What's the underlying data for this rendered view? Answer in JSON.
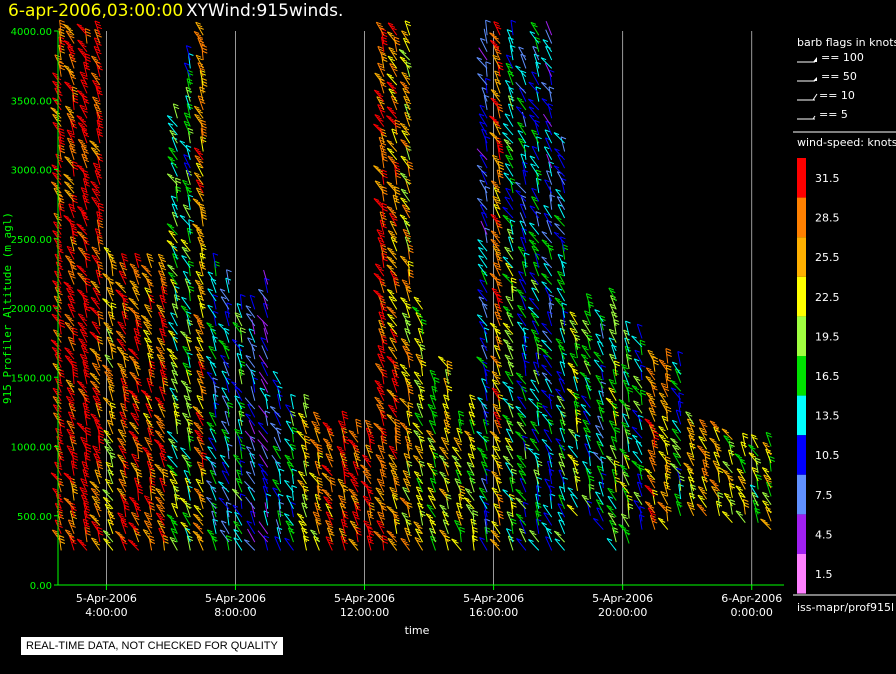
{
  "header": {
    "date": "6-apr-2006,03:00:00",
    "title": "XYWind:915winds."
  },
  "legend": {
    "barb_title": "barb flags in knots",
    "barb_items": [
      "== 100",
      "== 50",
      "== 10",
      "== 5"
    ],
    "speed_title": "wind-speed: knots",
    "source": "iss-mapr/prof915l"
  },
  "disclaimer": "REAL-TIME DATA, NOT CHECKED FOR QUALITY",
  "colors": {
    "axis": "#00ff00",
    "grid": "#c0c0c0",
    "title_date": "#ffff00"
  },
  "chart_data": {
    "type": "scatter",
    "title": "XYWind:915winds.",
    "xlabel": "time",
    "ylabel": "915 Profiler Altitude (m agl)",
    "ylim": [
      0,
      4000
    ],
    "yticks": [
      "0.00",
      "500.00",
      "1000.00",
      "1500.00",
      "2000.00",
      "2500.00",
      "3000.00",
      "3500.00",
      "4000.00"
    ],
    "xlim_hours": [
      2.5,
      25
    ],
    "xticks": [
      {
        "date": "5-Apr-2006",
        "time": "4:00:00",
        "hour": 4
      },
      {
        "date": "5-Apr-2006",
        "time": "8:00:00",
        "hour": 8
      },
      {
        "date": "5-Apr-2006",
        "time": "12:00:00",
        "hour": 12
      },
      {
        "date": "5-Apr-2006",
        "time": "16:00:00",
        "hour": 16
      },
      {
        "date": "5-Apr-2006",
        "time": "20:00:00",
        "hour": 20
      },
      {
        "date": "6-Apr-2006",
        "time": "0:00:00",
        "hour": 24
      }
    ],
    "grid": true,
    "colorbar": {
      "labels": [
        "31.5",
        "28.5",
        "25.5",
        "22.5",
        "19.5",
        "16.5",
        "13.5",
        "10.5",
        "7.5",
        "4.5",
        "1.5"
      ],
      "colors": [
        "#ff0000",
        "#ff8000",
        "#ffb000",
        "#ffff00",
        "#a0ff40",
        "#00e000",
        "#00ffff",
        "#0000ff",
        "#6090ff",
        "#a020f0",
        "#ff80ff"
      ]
    },
    "profiles": [
      {
        "hour": 2.6,
        "min": 250,
        "max": 4000,
        "speed": 31
      },
      {
        "hour": 3.0,
        "min": 250,
        "max": 4000,
        "speed": 30
      },
      {
        "hour": 3.4,
        "min": 250,
        "max": 4000,
        "speed": 32
      },
      {
        "hour": 3.8,
        "min": 250,
        "max": 4000,
        "speed": 30
      },
      {
        "hour": 4.2,
        "min": 250,
        "max": 2400,
        "speed": 23
      },
      {
        "hour": 4.6,
        "min": 250,
        "max": 2300,
        "speed": 30
      },
      {
        "hour": 5.0,
        "min": 250,
        "max": 2300,
        "speed": 30
      },
      {
        "hour": 5.4,
        "min": 250,
        "max": 2300,
        "speed": 28
      },
      {
        "hour": 5.8,
        "min": 250,
        "max": 2300,
        "speed": 30
      },
      {
        "hour": 6.2,
        "min": 250,
        "max": 3400,
        "speed": 19
      },
      {
        "hour": 6.6,
        "min": 250,
        "max": 3800,
        "speed": 18
      },
      {
        "hour": 7.0,
        "min": 250,
        "max": 4000,
        "speed": 26
      },
      {
        "hour": 7.4,
        "min": 250,
        "max": 2300,
        "speed": 12
      },
      {
        "hour": 7.8,
        "min": 250,
        "max": 2200,
        "speed": 12
      },
      {
        "hour": 8.2,
        "min": 250,
        "max": 2000,
        "speed": 14
      },
      {
        "hour": 8.6,
        "min": 250,
        "max": 2000,
        "speed": 10
      },
      {
        "hour": 9.0,
        "min": 250,
        "max": 2200,
        "speed": 8
      },
      {
        "hour": 9.4,
        "min": 250,
        "max": 1500,
        "speed": 11
      },
      {
        "hour": 9.8,
        "min": 250,
        "max": 1300,
        "speed": 14
      },
      {
        "hour": 10.2,
        "min": 250,
        "max": 1300,
        "speed": 22
      },
      {
        "hour": 10.6,
        "min": 250,
        "max": 1200,
        "speed": 25
      },
      {
        "hour": 11.0,
        "min": 250,
        "max": 1100,
        "speed": 28
      },
      {
        "hour": 11.4,
        "min": 250,
        "max": 1200,
        "speed": 29
      },
      {
        "hour": 11.8,
        "min": 250,
        "max": 1100,
        "speed": 30
      },
      {
        "hour": 12.2,
        "min": 250,
        "max": 1100,
        "speed": 31
      },
      {
        "hour": 12.6,
        "min": 250,
        "max": 4000,
        "speed": 30
      },
      {
        "hour": 13.0,
        "min": 250,
        "max": 4000,
        "speed": 27
      },
      {
        "hour": 13.4,
        "min": 250,
        "max": 4000,
        "speed": 24
      },
      {
        "hour": 13.8,
        "min": 250,
        "max": 2000,
        "speed": 22
      },
      {
        "hour": 14.2,
        "min": 250,
        "max": 1500,
        "speed": 20
      },
      {
        "hour": 14.6,
        "min": 250,
        "max": 1600,
        "speed": 22
      },
      {
        "hour": 15.0,
        "min": 250,
        "max": 1200,
        "speed": 21
      },
      {
        "hour": 15.4,
        "min": 250,
        "max": 1300,
        "speed": 20
      },
      {
        "hour": 15.8,
        "min": 250,
        "max": 4000,
        "speed": 12
      },
      {
        "hour": 16.2,
        "min": 250,
        "max": 4000,
        "speed": 27
      },
      {
        "hour": 16.6,
        "min": 250,
        "max": 4000,
        "speed": 17
      },
      {
        "hour": 17.0,
        "min": 250,
        "max": 3800,
        "speed": 14
      },
      {
        "hour": 17.4,
        "min": 250,
        "max": 4000,
        "speed": 15
      },
      {
        "hour": 17.8,
        "min": 250,
        "max": 4000,
        "speed": 12
      },
      {
        "hour": 18.2,
        "min": 250,
        "max": 3200,
        "speed": 15
      },
      {
        "hour": 18.6,
        "min": 500,
        "max": 1900,
        "speed": 18
      },
      {
        "hour": 19.0,
        "min": 500,
        "max": 2000,
        "speed": 16
      },
      {
        "hour": 19.4,
        "min": 400,
        "max": 1900,
        "speed": 12
      },
      {
        "hour": 19.8,
        "min": 250,
        "max": 2100,
        "speed": 18
      },
      {
        "hour": 20.2,
        "min": 300,
        "max": 1800,
        "speed": 17
      },
      {
        "hour": 20.6,
        "min": 400,
        "max": 1800,
        "speed": 14
      },
      {
        "hour": 21.0,
        "min": 400,
        "max": 1600,
        "speed": 27
      },
      {
        "hour": 21.4,
        "min": 400,
        "max": 1600,
        "speed": 26
      },
      {
        "hour": 21.8,
        "min": 500,
        "max": 1600,
        "speed": 15
      },
      {
        "hour": 22.2,
        "min": 500,
        "max": 1200,
        "speed": 24
      },
      {
        "hour": 22.6,
        "min": 500,
        "max": 1100,
        "speed": 26
      },
      {
        "hour": 23.0,
        "min": 500,
        "max": 1100,
        "speed": 25
      },
      {
        "hour": 23.4,
        "min": 450,
        "max": 1100,
        "speed": 20
      },
      {
        "hour": 23.8,
        "min": 450,
        "max": 1000,
        "speed": 22
      },
      {
        "hour": 24.2,
        "min": 450,
        "max": 1000,
        "speed": 19
      },
      {
        "hour": 24.6,
        "min": 400,
        "max": 1000,
        "speed": 21
      }
    ]
  }
}
